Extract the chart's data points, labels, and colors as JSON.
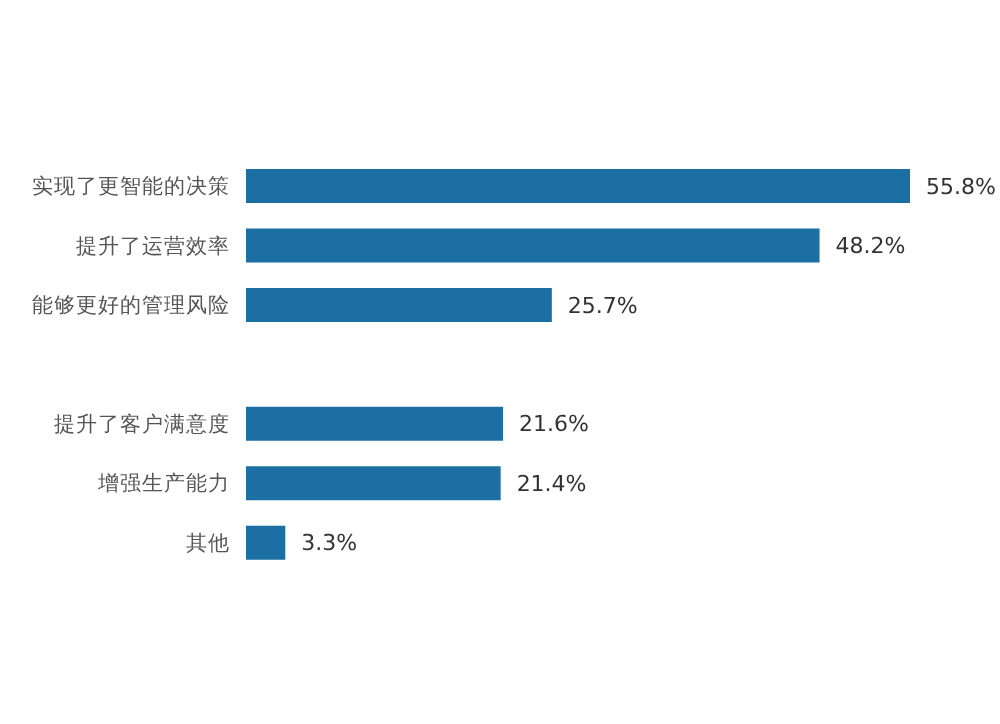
{
  "chart_data": {
    "type": "bar",
    "orientation": "horizontal",
    "categories": [
      "实现了更智能的决策",
      "提升了运营效率",
      "能够更好的管理风险",
      null,
      "提升了客户满意度",
      "增强生产能力",
      "其他"
    ],
    "values": [
      55.8,
      48.2,
      25.7,
      null,
      21.6,
      21.4,
      3.3
    ],
    "value_labels": [
      "55.8%",
      "48.2%",
      "25.7%",
      null,
      "21.6%",
      "21.4%",
      "3.3%"
    ],
    "color": "#1b6fa2"
  }
}
